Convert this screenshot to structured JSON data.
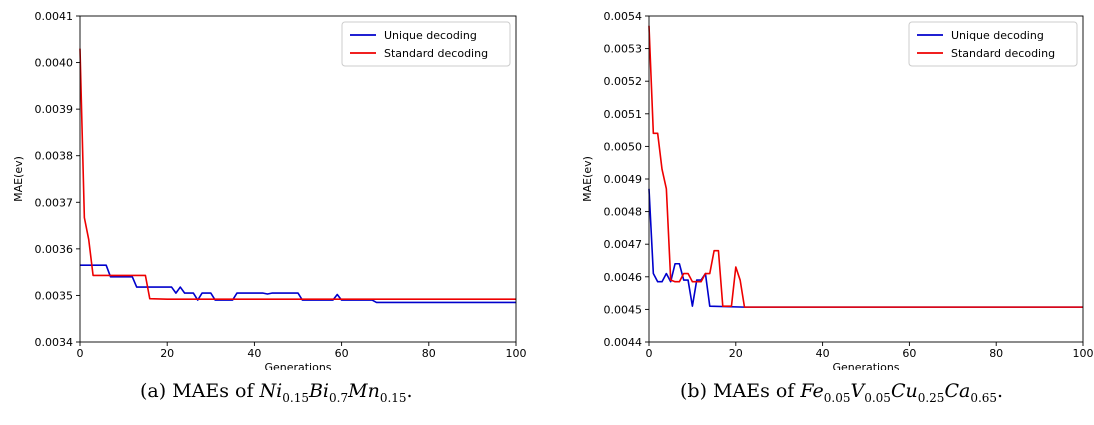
{
  "chart_data": [
    {
      "type": "line",
      "xlabel": "Generations",
      "ylabel": "MAE(ev)",
      "xlim": [
        0,
        100
      ],
      "ylim": [
        0.0034,
        0.0041
      ],
      "xticks": [
        "0",
        "20",
        "40",
        "60",
        "80",
        "100"
      ],
      "yticks": [
        "0.0034",
        "0.0035",
        "0.0036",
        "0.0037",
        "0.0038",
        "0.0039",
        "0.0040",
        "0.0041"
      ],
      "grid": false,
      "legend": "top-right",
      "series": [
        {
          "name": "Unique decoding",
          "color": "#0000cc",
          "points": [
            [
              0,
              0.003565
            ],
            [
              6,
              0.003565
            ],
            [
              7,
              0.00354
            ],
            [
              12,
              0.00354
            ],
            [
              13,
              0.003518
            ],
            [
              21,
              0.003518
            ],
            [
              22,
              0.003505
            ],
            [
              23,
              0.003518
            ],
            [
              24,
              0.003505
            ],
            [
              26,
              0.003505
            ],
            [
              27,
              0.00349
            ],
            [
              28,
              0.003505
            ],
            [
              30,
              0.003505
            ],
            [
              31,
              0.00349
            ],
            [
              35,
              0.00349
            ],
            [
              36,
              0.003505
            ],
            [
              42,
              0.003505
            ],
            [
              43,
              0.003503
            ],
            [
              44,
              0.003505
            ],
            [
              50,
              0.003505
            ],
            [
              51,
              0.00349
            ],
            [
              58,
              0.00349
            ],
            [
              59,
              0.003502
            ],
            [
              60,
              0.00349
            ],
            [
              67,
              0.00349
            ],
            [
              68,
              0.003485
            ],
            [
              100,
              0.003485
            ]
          ]
        },
        {
          "name": "Standard decoding",
          "color": "#ee0000",
          "points": [
            [
              0,
              0.00403
            ],
            [
              1,
              0.003667
            ],
            [
              2,
              0.00362
            ],
            [
              3,
              0.003543
            ],
            [
              15,
              0.003543
            ],
            [
              16,
              0.003493
            ],
            [
              20,
              0.003492
            ],
            [
              100,
              0.003492
            ]
          ]
        }
      ]
    },
    {
      "type": "line",
      "xlabel": "Generations",
      "ylabel": "MAE(ev)",
      "xlim": [
        0,
        100
      ],
      "ylim": [
        0.0044,
        0.0054
      ],
      "xticks": [
        "0",
        "20",
        "40",
        "60",
        "80",
        "100"
      ],
      "yticks": [
        "0.0044",
        "0.0045",
        "0.0046",
        "0.0047",
        "0.0048",
        "0.0049",
        "0.0050",
        "0.0051",
        "0.0052",
        "0.0053",
        "0.0054"
      ],
      "grid": false,
      "legend": "top-right",
      "series": [
        {
          "name": "Unique decoding",
          "color": "#0000cc",
          "points": [
            [
              0,
              0.00487
            ],
            [
              1,
              0.00461
            ],
            [
              2,
              0.004585
            ],
            [
              3,
              0.004585
            ],
            [
              4,
              0.00461
            ],
            [
              5,
              0.004585
            ],
            [
              6,
              0.00464
            ],
            [
              7,
              0.00464
            ],
            [
              8,
              0.00459
            ],
            [
              9,
              0.00459
            ],
            [
              10,
              0.00451
            ],
            [
              11,
              0.00459
            ],
            [
              12,
              0.00459
            ],
            [
              13,
              0.00461
            ],
            [
              14,
              0.00451
            ],
            [
              22,
              0.004507
            ],
            [
              100,
              0.004507
            ]
          ]
        },
        {
          "name": "Standard decoding",
          "color": "#ee0000",
          "points": [
            [
              0,
              0.00537
            ],
            [
              1,
              0.00504
            ],
            [
              2,
              0.00504
            ],
            [
              3,
              0.00493
            ],
            [
              4,
              0.00487
            ],
            [
              5,
              0.00459
            ],
            [
              6,
              0.004585
            ],
            [
              7,
              0.004585
            ],
            [
              8,
              0.00461
            ],
            [
              9,
              0.00461
            ],
            [
              10,
              0.004585
            ],
            [
              11,
              0.004585
            ],
            [
              12,
              0.004585
            ],
            [
              13,
              0.00461
            ],
            [
              14,
              0.00461
            ],
            [
              15,
              0.00468
            ],
            [
              16,
              0.00468
            ],
            [
              17,
              0.00451
            ],
            [
              19,
              0.00451
            ],
            [
              20,
              0.00463
            ],
            [
              21,
              0.00459
            ],
            [
              22,
              0.004507
            ],
            [
              100,
              0.004507
            ]
          ]
        }
      ]
    }
  ],
  "captions": {
    "a": {
      "prefix": "(a) MAEs of ",
      "formula": [
        [
          "Ni",
          "0.15"
        ],
        [
          "Bi",
          "0.7"
        ],
        [
          "Mn",
          "0.15"
        ]
      ],
      "suffix": "."
    },
    "b": {
      "prefix": "(b) MAEs of ",
      "formula": [
        [
          "Fe",
          "0.05"
        ],
        [
          "V",
          "0.05"
        ],
        [
          "Cu",
          "0.25"
        ],
        [
          "Ca",
          "0.65"
        ]
      ],
      "suffix": "."
    }
  }
}
